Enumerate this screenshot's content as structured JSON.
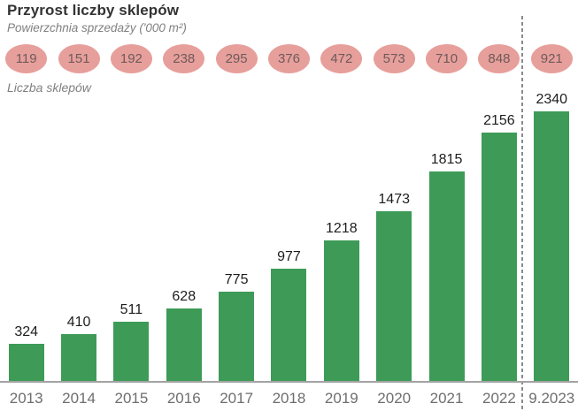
{
  "header": {
    "title": "Przyrost liczby sklepów",
    "subtitle": "Powierzchnia sprzedaży ('000 m²)",
    "series2_label": "Liczba sklepów"
  },
  "chart_data": {
    "type": "bar",
    "categories": [
      "2013",
      "2014",
      "2015",
      "2016",
      "2017",
      "2018",
      "2019",
      "2020",
      "2021",
      "2022",
      "9.2023"
    ],
    "series": [
      {
        "name": "Powierzchnia sprzedaży ('000 m²)",
        "style": "pink-ellipse-badges",
        "values": [
          119,
          151,
          192,
          238,
          295,
          376,
          472,
          573,
          710,
          848,
          921
        ]
      },
      {
        "name": "Liczba sklepów",
        "style": "green-bars",
        "values": [
          324,
          410,
          511,
          628,
          775,
          977,
          1218,
          1473,
          1815,
          2156,
          2340
        ]
      }
    ],
    "title": "Przyrost liczby sklepów",
    "ylim": [
      0,
      2340
    ],
    "grid": "off",
    "legend": "inline-labels-above-chart",
    "annotations": {
      "forecast_separator_before_category": "9.2023",
      "separator_style": "vertical-dashed-line"
    }
  },
  "colors": {
    "bar": "#3d9b57",
    "bubble_fill": "#e79f9b",
    "bubble_text": "#6e5a5a",
    "value_label": "#1d1d1d",
    "axis_line": "#a3a3a3",
    "year_label": "#6e6e6e",
    "dashed_line": "#8a8a8a",
    "title": "#333333",
    "subtitle": "#808080"
  }
}
